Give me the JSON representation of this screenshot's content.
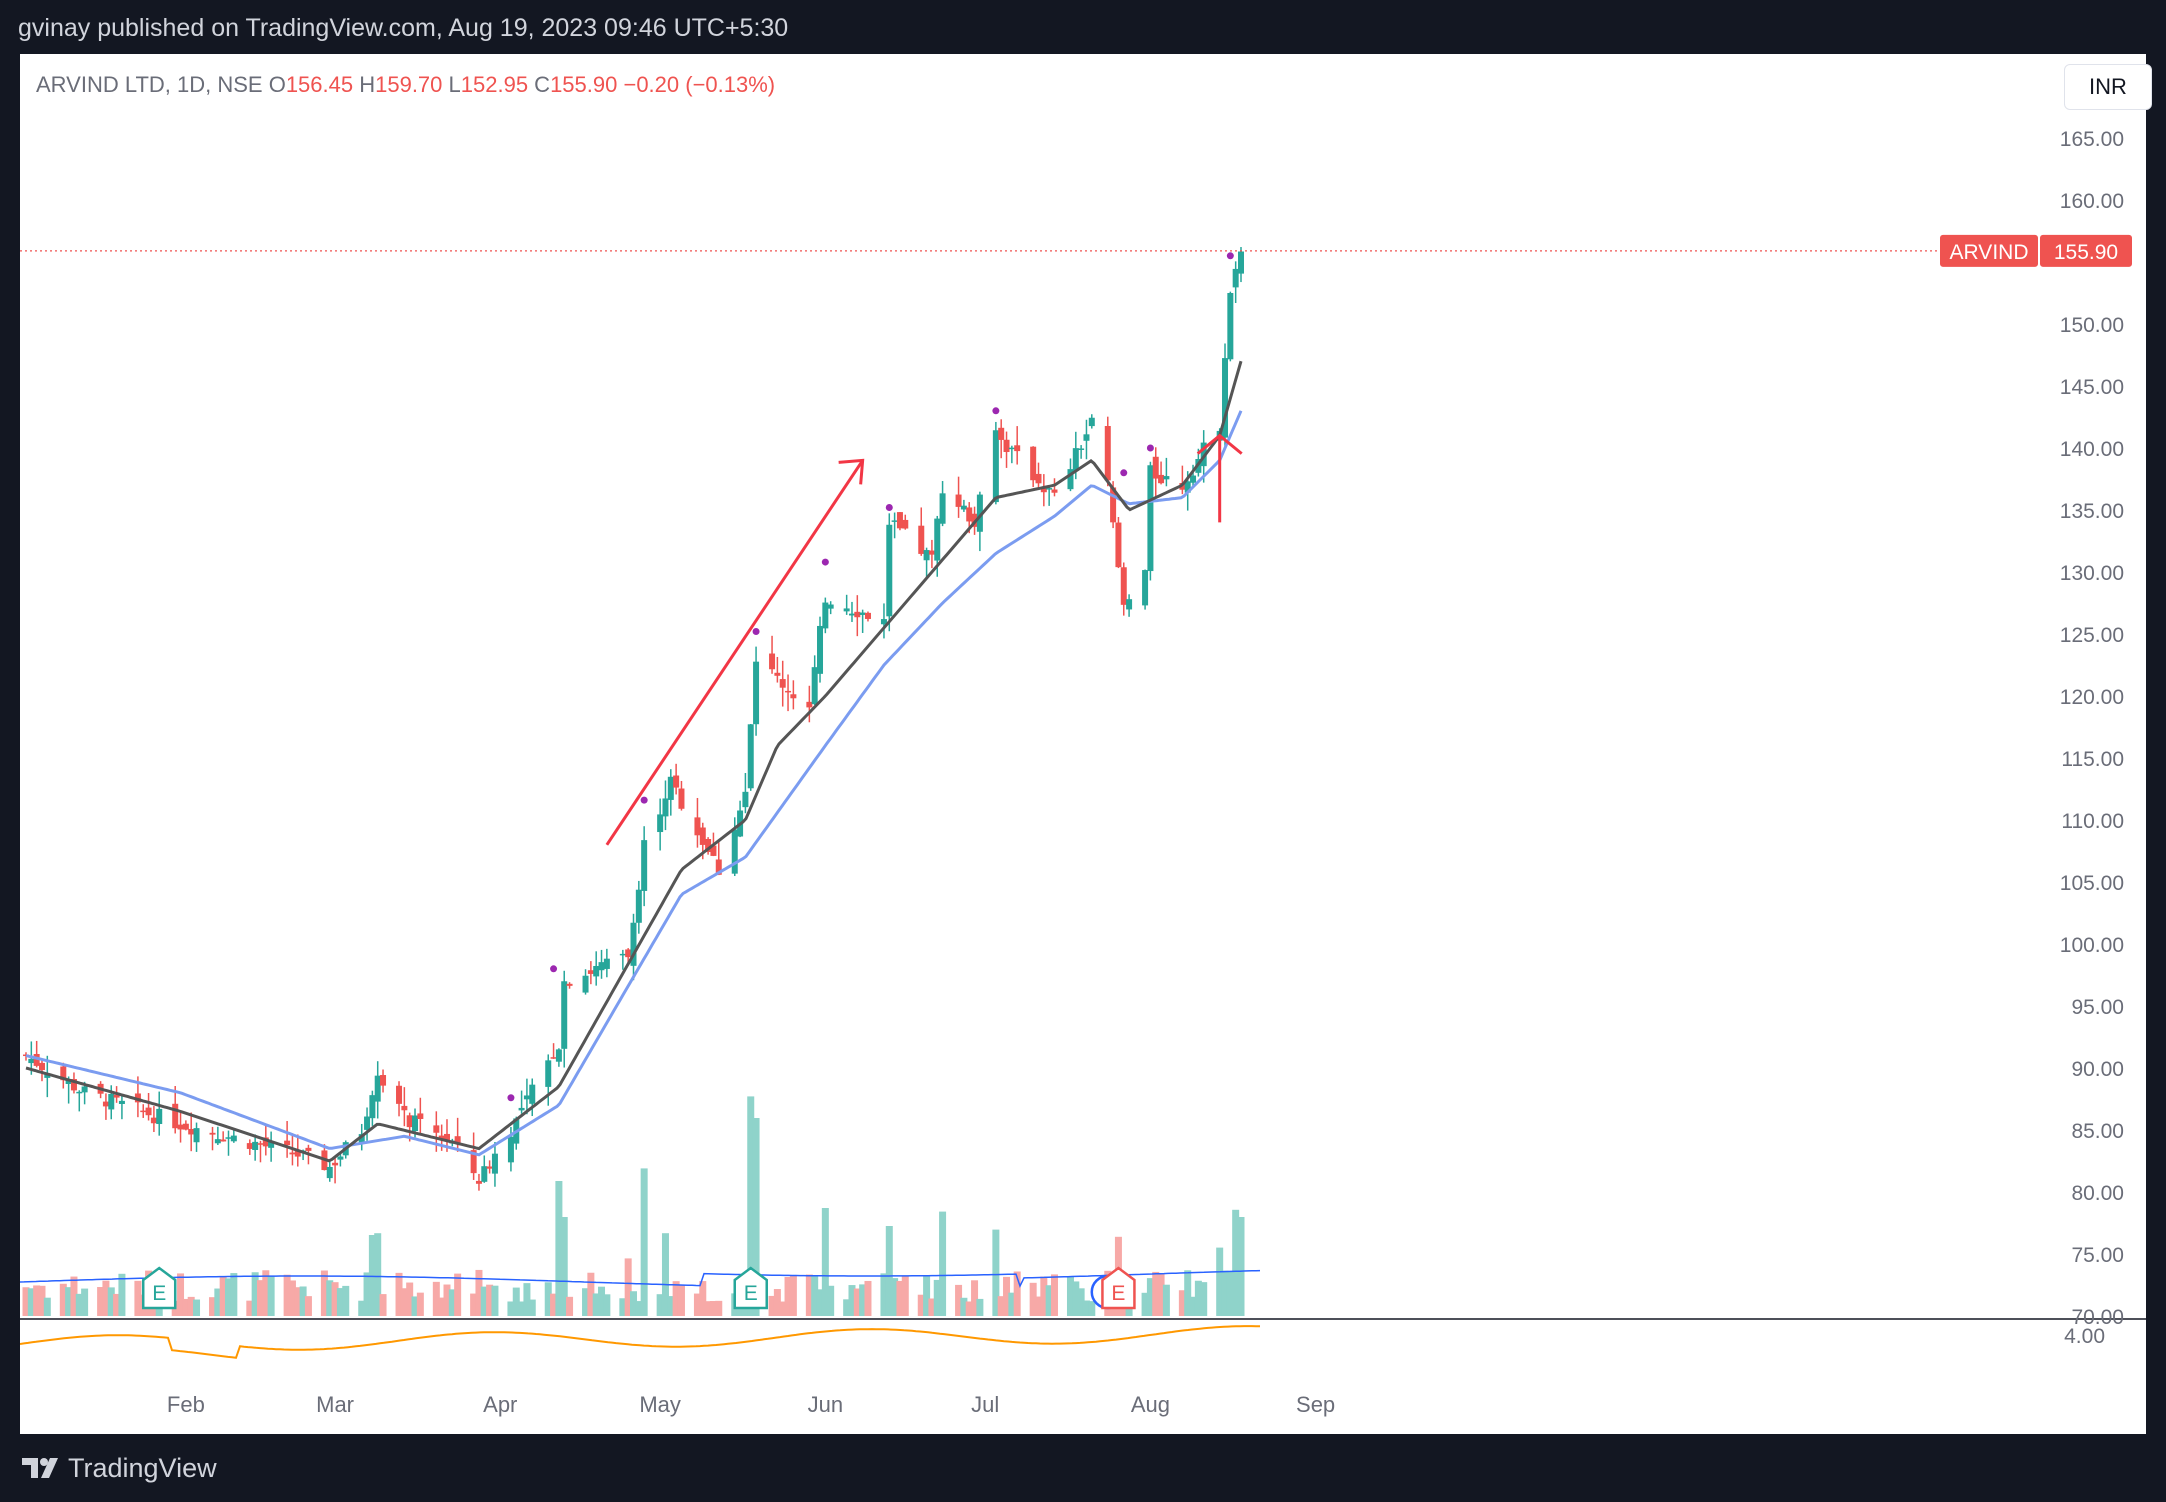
{
  "header": {
    "published_line": "gvinay published on TradingView.com, Aug 19, 2023 09:46 UTC+5:30"
  },
  "legend": {
    "symbol": "ARVIND LTD, 1D, NSE",
    "open_label": "O",
    "open": "156.45",
    "high_label": "H",
    "high": "159.70",
    "low_label": "L",
    "low": "152.95",
    "close_label": "C",
    "close": "155.90",
    "change": "−0.20 (−0.13%)"
  },
  "currency": "INR",
  "price_tag": {
    "symbol": "ARVIND",
    "value": "155.90"
  },
  "events": [
    {
      "letter": "E",
      "kind": "earnings",
      "month_pos": "Jan 27"
    },
    {
      "letter": "E",
      "kind": "earnings",
      "month_pos": "May 18"
    },
    {
      "letter": "D",
      "kind": "dividend",
      "month_pos": "Jul 24"
    },
    {
      "letter": "E",
      "kind": "earnings",
      "month_pos": "Jul 26"
    }
  ],
  "colors": {
    "up": "#26a69a",
    "down": "#ef5350",
    "vol_up": "#8fd3ca",
    "vol_down": "#f7a9a7",
    "ema_fast": "#555555",
    "ema_slow": "#7b9cf0",
    "vol_ma": "#2962ff",
    "indicator": "#ff9800",
    "annotation": "#f23645",
    "dot": "#9c27b0"
  },
  "chart_data": {
    "type": "candlestick",
    "title": "ARVIND LTD, 1D, NSE",
    "x_tick_labels": [
      "Feb",
      "Mar",
      "Apr",
      "May",
      "Jun",
      "Jul",
      "Aug",
      "Sep"
    ],
    "y_tick_labels": [
      "165.00",
      "160.00",
      "150.00",
      "145.00",
      "140.00",
      "135.00",
      "130.00",
      "125.00",
      "120.00",
      "115.00",
      "110.00",
      "105.00",
      "100.00",
      "95.00",
      "90.00",
      "85.00",
      "80.00",
      "75.00",
      "70.00"
    ],
    "ylim": [
      70,
      167.5
    ],
    "last_price": 155.9,
    "indicator_tick": "4.00",
    "series": [
      {
        "name": "OHLC",
        "date_range": [
          "2023-01-02",
          "2023-08-18"
        ],
        "close_path_anchors": [
          [
            "2023-01-02",
            91
          ],
          [
            "2023-01-13",
            88
          ],
          [
            "2023-01-31",
            85.5
          ],
          [
            "2023-02-22",
            83
          ],
          [
            "2023-02-28",
            82
          ],
          [
            "2023-03-06",
            85
          ],
          [
            "2023-03-09",
            90
          ],
          [
            "2023-03-14",
            86
          ],
          [
            "2023-03-23",
            84
          ],
          [
            "2023-03-28",
            81
          ],
          [
            "2023-04-03",
            85
          ],
          [
            "2023-04-12",
            92
          ],
          [
            "2023-04-13",
            97
          ],
          [
            "2023-04-25",
            99
          ],
          [
            "2023-04-28",
            108
          ],
          [
            "2023-05-03",
            113
          ],
          [
            "2023-05-12",
            106
          ],
          [
            "2023-05-17",
            112
          ],
          [
            "2023-05-19",
            123
          ],
          [
            "2023-05-29",
            119
          ],
          [
            "2023-06-01",
            128
          ],
          [
            "2023-06-12",
            126
          ],
          [
            "2023-06-13",
            134
          ],
          [
            "2023-06-21",
            131
          ],
          [
            "2023-06-23",
            137
          ],
          [
            "2023-06-29",
            134
          ],
          [
            "2023-07-03",
            141
          ],
          [
            "2023-07-14",
            136
          ],
          [
            "2023-07-21",
            142
          ],
          [
            "2023-07-24",
            137
          ],
          [
            "2023-07-27",
            127
          ],
          [
            "2023-07-31",
            130
          ],
          [
            "2023-08-01",
            138
          ],
          [
            "2023-08-07",
            137
          ],
          [
            "2023-08-14",
            142
          ],
          [
            "2023-08-16",
            152
          ],
          [
            "2023-08-18",
            155.9
          ]
        ]
      },
      {
        "name": "EMA fast",
        "anchors": [
          [
            "2023-01-02",
            90
          ],
          [
            "2023-01-31",
            86.5
          ],
          [
            "2023-02-28",
            82.5
          ],
          [
            "2023-03-09",
            85.5
          ],
          [
            "2023-03-28",
            83.5
          ],
          [
            "2023-04-12",
            88.5
          ],
          [
            "2023-05-05",
            106
          ],
          [
            "2023-05-17",
            110
          ],
          [
            "2023-05-23",
            116
          ],
          [
            "2023-06-01",
            120
          ],
          [
            "2023-06-12",
            125.5
          ],
          [
            "2023-06-23",
            131
          ],
          [
            "2023-07-03",
            136
          ],
          [
            "2023-07-14",
            137
          ],
          [
            "2023-07-21",
            139
          ],
          [
            "2023-07-28",
            135
          ],
          [
            "2023-08-07",
            137
          ],
          [
            "2023-08-14",
            141
          ],
          [
            "2023-08-18",
            147
          ]
        ]
      },
      {
        "name": "EMA slow",
        "anchors": [
          [
            "2023-01-02",
            91
          ],
          [
            "2023-01-31",
            88
          ],
          [
            "2023-02-28",
            83.5
          ],
          [
            "2023-03-14",
            84.5
          ],
          [
            "2023-03-28",
            83
          ],
          [
            "2023-04-12",
            87
          ],
          [
            "2023-05-05",
            104
          ],
          [
            "2023-05-17",
            107
          ],
          [
            "2023-06-01",
            116
          ],
          [
            "2023-06-12",
            122.5
          ],
          [
            "2023-06-23",
            127.5
          ],
          [
            "2023-07-03",
            131.5
          ],
          [
            "2023-07-14",
            134.5
          ],
          [
            "2023-07-21",
            137
          ],
          [
            "2023-07-28",
            135.5
          ],
          [
            "2023-08-07",
            136
          ],
          [
            "2023-08-14",
            139
          ],
          [
            "2023-08-18",
            143
          ]
        ]
      },
      {
        "name": "Volume",
        "spikes": [
          [
            "2023-03-08",
            4.5
          ],
          [
            "2023-03-09",
            4.6
          ],
          [
            "2023-04-12",
            7.5
          ],
          [
            "2023-04-13",
            5.5
          ],
          [
            "2023-04-25",
            3.2
          ],
          [
            "2023-04-28",
            8.2
          ],
          [
            "2023-05-02",
            4.6
          ],
          [
            "2023-05-18",
            12.2
          ],
          [
            "2023-05-19",
            11.0
          ],
          [
            "2023-06-01",
            6.0
          ],
          [
            "2023-06-13",
            5.0
          ],
          [
            "2023-06-23",
            5.8
          ],
          [
            "2023-07-03",
            4.8
          ],
          [
            "2023-07-26",
            4.4
          ],
          [
            "2023-08-14",
            3.8
          ],
          [
            "2023-08-17",
            5.9
          ],
          [
            "2023-08-18",
            5.5
          ]
        ]
      }
    ],
    "annotations": [
      {
        "type": "arrow",
        "from": [
          "2023-04-21",
          108
        ],
        "to": [
          "2023-06-08",
          139
        ]
      },
      {
        "type": "arrow-up",
        "at": [
          "2023-08-14",
          134
        ],
        "tip": 141
      }
    ]
  },
  "footer": {
    "brand": "TradingView"
  }
}
